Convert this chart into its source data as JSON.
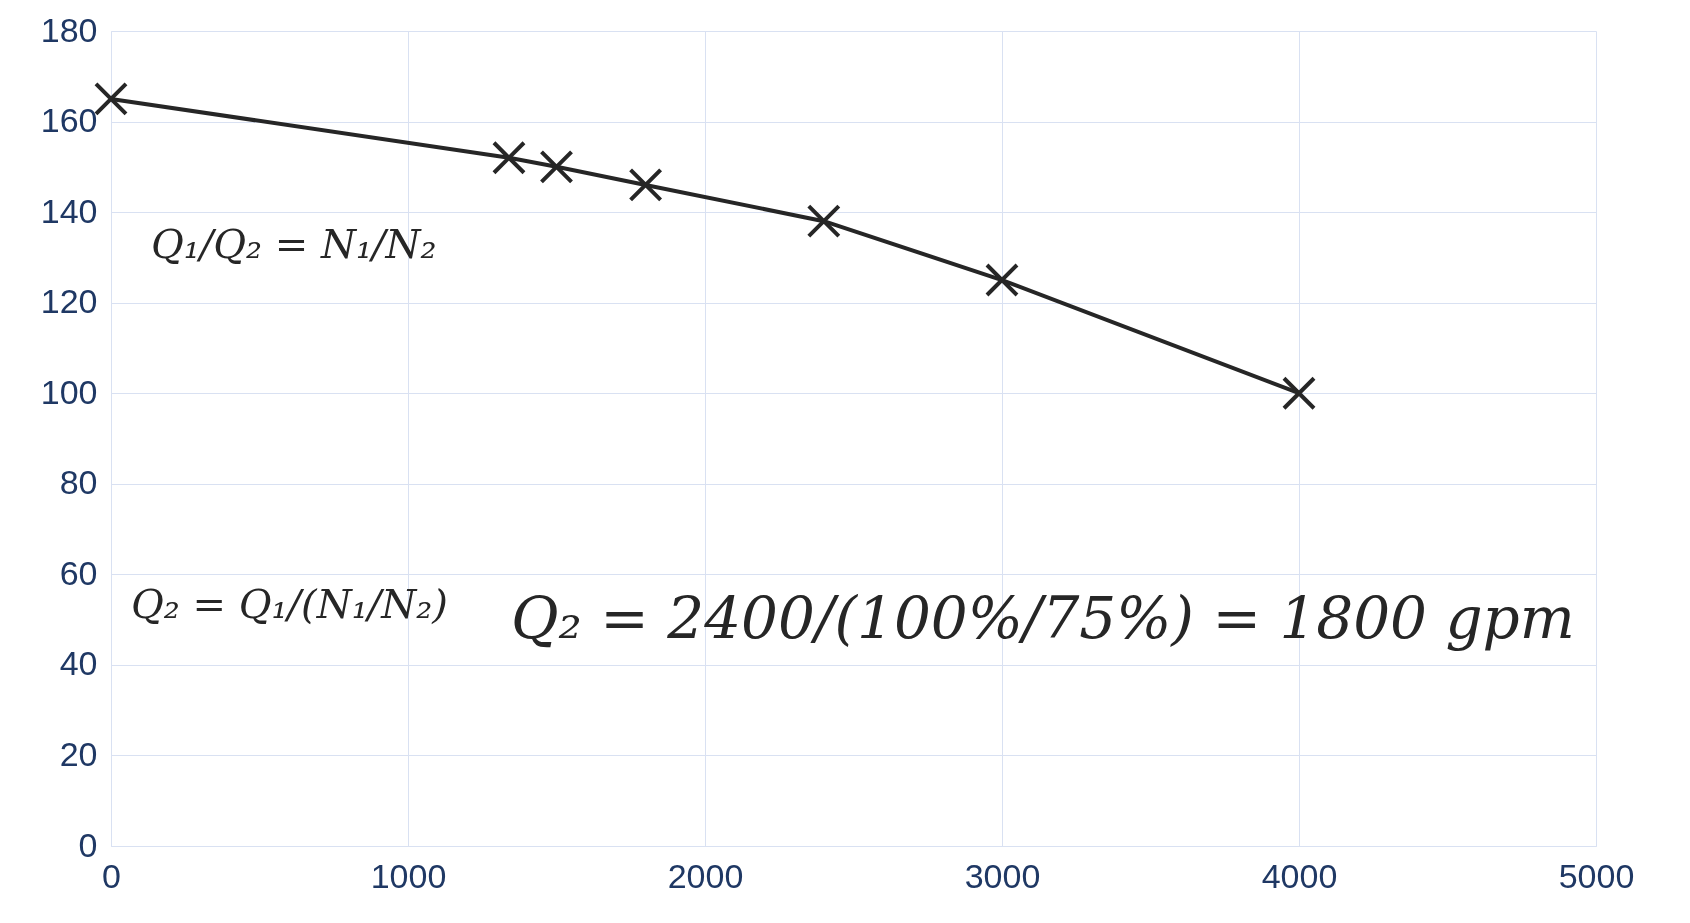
{
  "chart_data": {
    "type": "line",
    "x": [
      0,
      1340,
      1500,
      1800,
      2400,
      3000,
      4000
    ],
    "series": [
      {
        "color": "#262626",
        "values": [
          165,
          152,
          150,
          146,
          138,
          125,
          100
        ]
      }
    ],
    "xlim": [
      0,
      5000
    ],
    "xticks": [
      0,
      1000,
      2000,
      3000,
      4000,
      5000
    ],
    "ylim": [
      0,
      180
    ],
    "yticks": [
      0,
      20,
      40,
      60,
      80,
      100,
      120,
      140,
      160,
      180
    ],
    "grid": true,
    "marker": "cross",
    "line_style": "solid",
    "annotations": [
      "Q₁/Q₂ = N₁/N₂",
      "Q₂ = Q₁/(N₁/N₂)",
      "Q₂ = 2400/(100%/75%) = 1800 gpm"
    ]
  }
}
